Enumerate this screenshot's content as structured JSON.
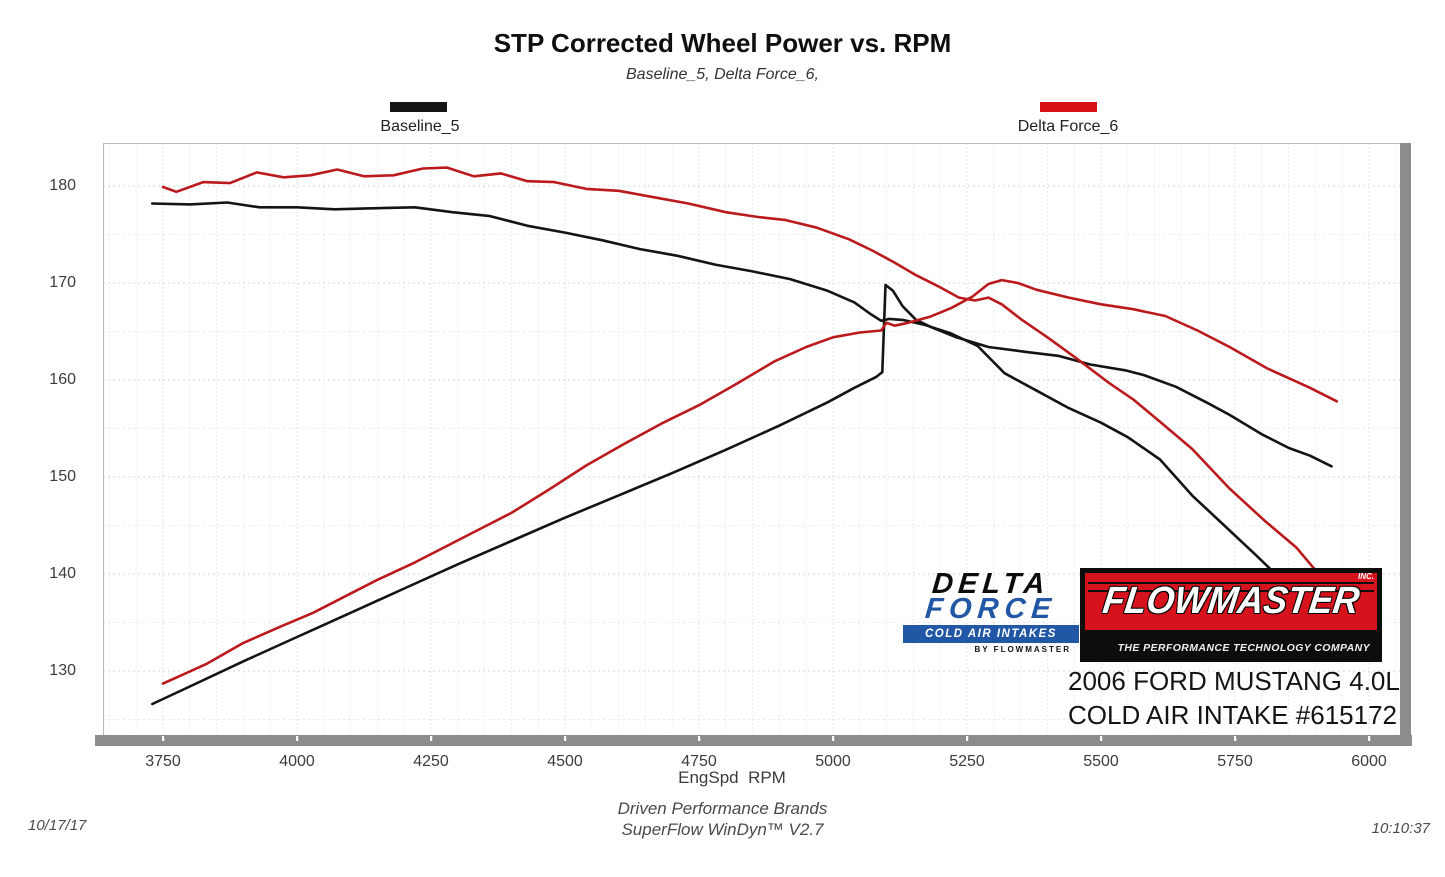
{
  "title": "STP Corrected Wheel Power vs. RPM",
  "subtitle": "Baseline_5, Delta Force_6,",
  "legend": [
    {
      "label": "Baseline_5",
      "color": "#141414"
    },
    {
      "label": "Delta Force_6",
      "color": "#d91216"
    }
  ],
  "footer": {
    "date": "10/17/17",
    "line1": "Driven Performance Brands",
    "line2": "SuperFlow WinDyn™ V2.7",
    "time": "10:10:37"
  },
  "branding": {
    "delta_force": {
      "word1": "DELTA",
      "word2": "FORCE",
      "bar_text": "COLD AIR INTAKES",
      "sub_text": "BY FLOWMASTER",
      "blue": "#2157a4"
    },
    "flowmaster": {
      "name": "FLOWMASTER",
      "inc": "INC.",
      "tagline": "THE PERFORMANCE TECHNOLOGY COMPANY",
      "red": "#d6121c"
    },
    "vehicle_line1": "2006 FORD MUSTANG 4.0L",
    "vehicle_line2": "COLD AIR INTAKE #615172"
  },
  "chart_data": {
    "type": "line",
    "title": "STP Corrected Wheel Power vs. RPM",
    "xlabel": "EngSpd  RPM",
    "ylabel": "",
    "xlim": [
      3620,
      6060
    ],
    "ylim": [
      123.2,
      184.4
    ],
    "x_ticks": [
      3750,
      4000,
      4250,
      4500,
      4750,
      5000,
      5250,
      5500,
      5750,
      6000
    ],
    "y_ticks": [
      130,
      140,
      150,
      160,
      170,
      180
    ],
    "grid": "light dotted; vertical every 50 RPM, horizontal every 5 units",
    "legend_position": "top",
    "series": [
      {
        "name": "Baseline_5 — falling trace",
        "color": "#141414",
        "points": [
          [
            3730,
            178.2
          ],
          [
            3800,
            178.1
          ],
          [
            3870,
            178.3
          ],
          [
            3930,
            177.8
          ],
          [
            4000,
            177.8
          ],
          [
            4070,
            177.6
          ],
          [
            4140,
            177.7
          ],
          [
            4220,
            177.8
          ],
          [
            4290,
            177.3
          ],
          [
            4360,
            176.9
          ],
          [
            4430,
            175.9
          ],
          [
            4500,
            175.2
          ],
          [
            4570,
            174.4
          ],
          [
            4640,
            173.5
          ],
          [
            4710,
            172.8
          ],
          [
            4780,
            171.9
          ],
          [
            4850,
            171.2
          ],
          [
            4920,
            170.4
          ],
          [
            4990,
            169.2
          ],
          [
            5040,
            168.0
          ],
          [
            5070,
            166.8
          ],
          [
            5090,
            166.1
          ],
          [
            5105,
            166.3
          ],
          [
            5130,
            166.2
          ],
          [
            5170,
            165.7
          ],
          [
            5220,
            164.8
          ],
          [
            5270,
            163.5
          ],
          [
            5320,
            160.7
          ],
          [
            5380,
            158.9
          ],
          [
            5440,
            157.1
          ],
          [
            5500,
            155.6
          ],
          [
            5550,
            154.1
          ],
          [
            5610,
            151.8
          ],
          [
            5670,
            148.1
          ],
          [
            5730,
            145.0
          ],
          [
            5790,
            141.9
          ],
          [
            5820,
            140.3
          ]
        ]
      },
      {
        "name": "Baseline_5 — rising trace (spike at ~5095 RPM)",
        "color": "#141414",
        "points": [
          [
            3730,
            126.6
          ],
          [
            3800,
            128.4
          ],
          [
            3900,
            131.0
          ],
          [
            4000,
            133.5
          ],
          [
            4100,
            136.0
          ],
          [
            4200,
            138.5
          ],
          [
            4300,
            141.0
          ],
          [
            4400,
            143.4
          ],
          [
            4500,
            145.8
          ],
          [
            4600,
            148.1
          ],
          [
            4700,
            150.4
          ],
          [
            4800,
            152.8
          ],
          [
            4900,
            155.3
          ],
          [
            4990,
            157.7
          ],
          [
            5040,
            159.2
          ],
          [
            5080,
            160.3
          ],
          [
            5092,
            160.8
          ],
          [
            5098,
            169.8
          ],
          [
            5112,
            169.2
          ],
          [
            5130,
            167.6
          ],
          [
            5155,
            166.2
          ],
          [
            5185,
            165.4
          ],
          [
            5230,
            164.4
          ],
          [
            5290,
            163.4
          ],
          [
            5360,
            162.9
          ],
          [
            5420,
            162.5
          ],
          [
            5480,
            161.6
          ],
          [
            5545,
            161.0
          ],
          [
            5580,
            160.5
          ],
          [
            5640,
            159.3
          ],
          [
            5700,
            157.6
          ],
          [
            5740,
            156.4
          ],
          [
            5800,
            154.4
          ],
          [
            5850,
            153.0
          ],
          [
            5890,
            152.2
          ],
          [
            5930,
            151.1
          ]
        ]
      },
      {
        "name": "Delta Force_6 — falling trace",
        "color": "#bb1a1d",
        "points": [
          [
            3750,
            179.9
          ],
          [
            3775,
            179.4
          ],
          [
            3825,
            180.4
          ],
          [
            3875,
            180.3
          ],
          [
            3925,
            181.4
          ],
          [
            3975,
            180.9
          ],
          [
            4025,
            181.1
          ],
          [
            4075,
            181.7
          ],
          [
            4125,
            181.0
          ],
          [
            4180,
            181.1
          ],
          [
            4235,
            181.8
          ],
          [
            4280,
            181.9
          ],
          [
            4330,
            181.0
          ],
          [
            4380,
            181.3
          ],
          [
            4430,
            180.5
          ],
          [
            4480,
            180.4
          ],
          [
            4540,
            179.7
          ],
          [
            4600,
            179.5
          ],
          [
            4660,
            178.9
          ],
          [
            4730,
            178.2
          ],
          [
            4800,
            177.3
          ],
          [
            4860,
            176.8
          ],
          [
            4910,
            176.5
          ],
          [
            4970,
            175.7
          ],
          [
            5030,
            174.5
          ],
          [
            5075,
            173.3
          ],
          [
            5115,
            172.1
          ],
          [
            5155,
            170.8
          ],
          [
            5195,
            169.7
          ],
          [
            5235,
            168.5
          ],
          [
            5265,
            168.2
          ],
          [
            5290,
            168.5
          ],
          [
            5315,
            167.8
          ],
          [
            5350,
            166.3
          ],
          [
            5400,
            164.4
          ],
          [
            5455,
            162.2
          ],
          [
            5515,
            159.7
          ],
          [
            5560,
            158.0
          ],
          [
            5610,
            155.7
          ],
          [
            5670,
            152.9
          ],
          [
            5740,
            148.8
          ],
          [
            5805,
            145.5
          ],
          [
            5865,
            142.7
          ],
          [
            5900,
            140.4
          ]
        ]
      },
      {
        "name": "Delta Force_6 — rising trace (peak ~170.3 @ 5315 RPM)",
        "color": "#bb1a1d",
        "points": [
          [
            3750,
            128.7
          ],
          [
            3830,
            130.7
          ],
          [
            3900,
            132.9
          ],
          [
            3970,
            134.6
          ],
          [
            4030,
            136.0
          ],
          [
            4090,
            137.7
          ],
          [
            4150,
            139.4
          ],
          [
            4220,
            141.2
          ],
          [
            4280,
            142.9
          ],
          [
            4340,
            144.6
          ],
          [
            4400,
            146.3
          ],
          [
            4470,
            148.7
          ],
          [
            4540,
            151.2
          ],
          [
            4610,
            153.4
          ],
          [
            4680,
            155.5
          ],
          [
            4750,
            157.4
          ],
          [
            4820,
            159.6
          ],
          [
            4890,
            161.9
          ],
          [
            4950,
            163.4
          ],
          [
            5000,
            164.4
          ],
          [
            5050,
            164.9
          ],
          [
            5090,
            165.1
          ],
          [
            5100,
            165.9
          ],
          [
            5115,
            165.6
          ],
          [
            5140,
            165.9
          ],
          [
            5180,
            166.5
          ],
          [
            5220,
            167.4
          ],
          [
            5260,
            168.6
          ],
          [
            5290,
            169.9
          ],
          [
            5315,
            170.3
          ],
          [
            5345,
            170.0
          ],
          [
            5380,
            169.3
          ],
          [
            5440,
            168.5
          ],
          [
            5500,
            167.8
          ],
          [
            5560,
            167.3
          ],
          [
            5620,
            166.6
          ],
          [
            5680,
            165.1
          ],
          [
            5740,
            163.4
          ],
          [
            5810,
            161.2
          ],
          [
            5890,
            159.2
          ],
          [
            5940,
            157.8
          ]
        ]
      }
    ]
  }
}
